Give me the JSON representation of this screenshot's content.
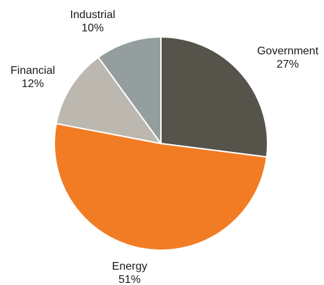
{
  "chart_data": {
    "type": "pie",
    "categories": [
      "Government",
      "Energy",
      "Financial",
      "Industrial"
    ],
    "values": [
      27,
      51,
      12,
      10
    ],
    "value_labels": [
      "27%",
      "51%",
      "12%",
      "10%"
    ],
    "colors": [
      "#55534a",
      "#f27c24",
      "#bcb8b0",
      "#959e9e"
    ],
    "start_angle_deg": 0,
    "direction": "clockwise",
    "legend": "none",
    "title": ""
  }
}
